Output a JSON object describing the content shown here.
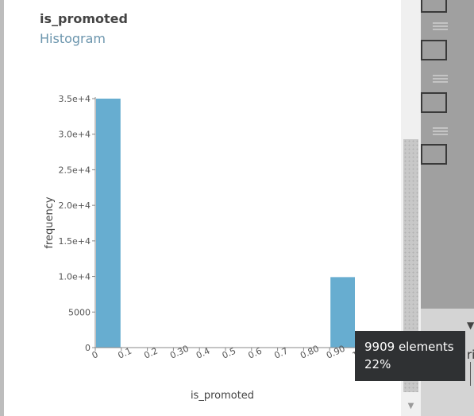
{
  "header": {
    "title": "is_promoted",
    "subtitle": "Histogram"
  },
  "chart_data": {
    "type": "bar",
    "title": "is_promoted",
    "subtitle": "Histogram",
    "xlabel": "is_promoted",
    "ylabel": "frequency",
    "x_ticks": [
      "0",
      "0.1",
      "0.2",
      "0.30",
      "0.4",
      "0.5",
      "0.6",
      "0.7",
      "0.80",
      "0.90",
      "1"
    ],
    "y_ticks": [
      "0",
      "5000",
      "1.0e+4",
      "1.5e+4",
      "2.0e+4",
      "2.5e+4",
      "3.0e+4",
      "3.5e+4"
    ],
    "ylim": [
      0,
      35000
    ],
    "xlim": [
      0,
      1
    ],
    "bins": [
      {
        "x0": 0.0,
        "x1": 0.1,
        "value": 35000
      },
      {
        "x0": 0.9,
        "x1": 1.0,
        "value": 9909
      }
    ],
    "bar_color": "#67add0",
    "grid": false
  },
  "tooltip": {
    "line1": "9909 elements",
    "line2": "22%"
  },
  "right_pane": {
    "partial_text": "ri"
  }
}
